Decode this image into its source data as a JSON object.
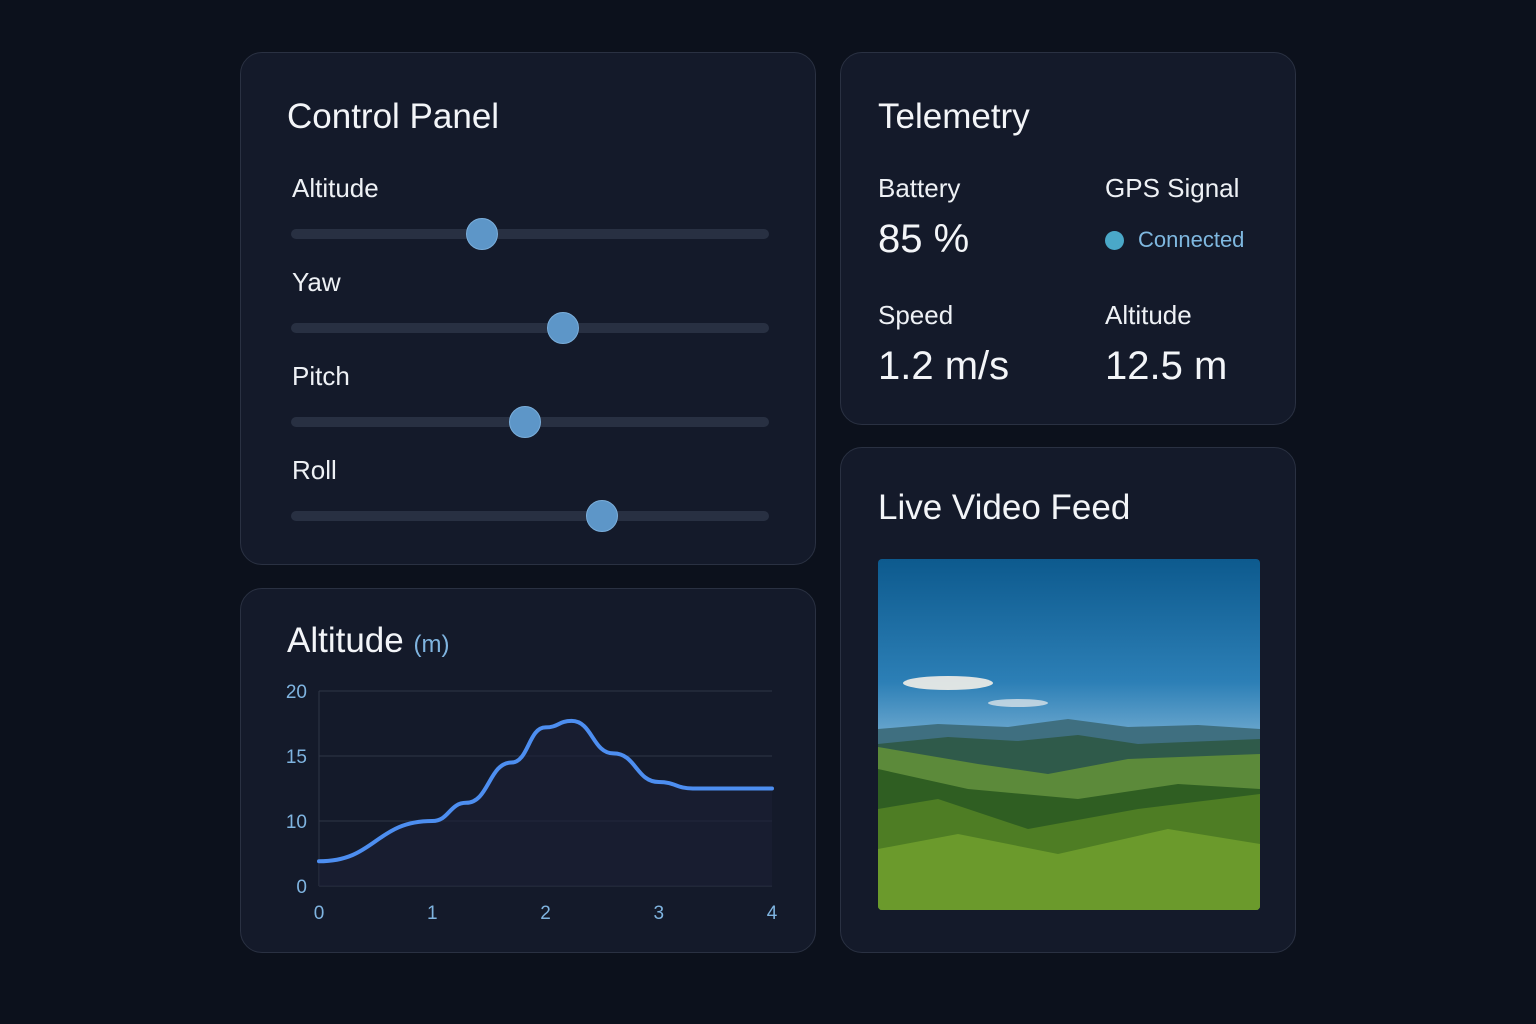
{
  "control_panel": {
    "title": "Control Panel",
    "sliders": [
      {
        "label": "Altitude",
        "value": 0.4
      },
      {
        "label": "Yaw",
        "value": 0.57
      },
      {
        "label": "Pitch",
        "value": 0.49
      },
      {
        "label": "Roll",
        "value": 0.65
      }
    ]
  },
  "telemetry": {
    "title": "Telemetry",
    "battery": {
      "label": "Battery",
      "value": "85 %"
    },
    "gps": {
      "label": "GPS Signal",
      "status": "Connected",
      "color": "#4aa8c8"
    },
    "speed": {
      "label": "Speed",
      "value": "1.2 m/s"
    },
    "altitude": {
      "label": "Altitude",
      "value": "12.5 m"
    }
  },
  "video": {
    "title": "Live Video Feed"
  },
  "chart_data": {
    "type": "line",
    "title": "Altitude",
    "unit": "(m)",
    "x": [
      0,
      1,
      1.3,
      1.7,
      2,
      2.23,
      2.6,
      3,
      3.3,
      4
    ],
    "y": [
      3.8,
      10,
      11.4,
      14.5,
      17.2,
      17.7,
      15.2,
      13.0,
      12.5,
      12.5
    ],
    "xticks": [
      "0",
      "1",
      "2",
      "3",
      "4"
    ],
    "yticks": [
      "0",
      "10",
      "15",
      "20"
    ],
    "xlim": [
      0,
      4
    ],
    "ylim": [
      0,
      20
    ],
    "grid": true,
    "color": "#4d8ef0"
  }
}
